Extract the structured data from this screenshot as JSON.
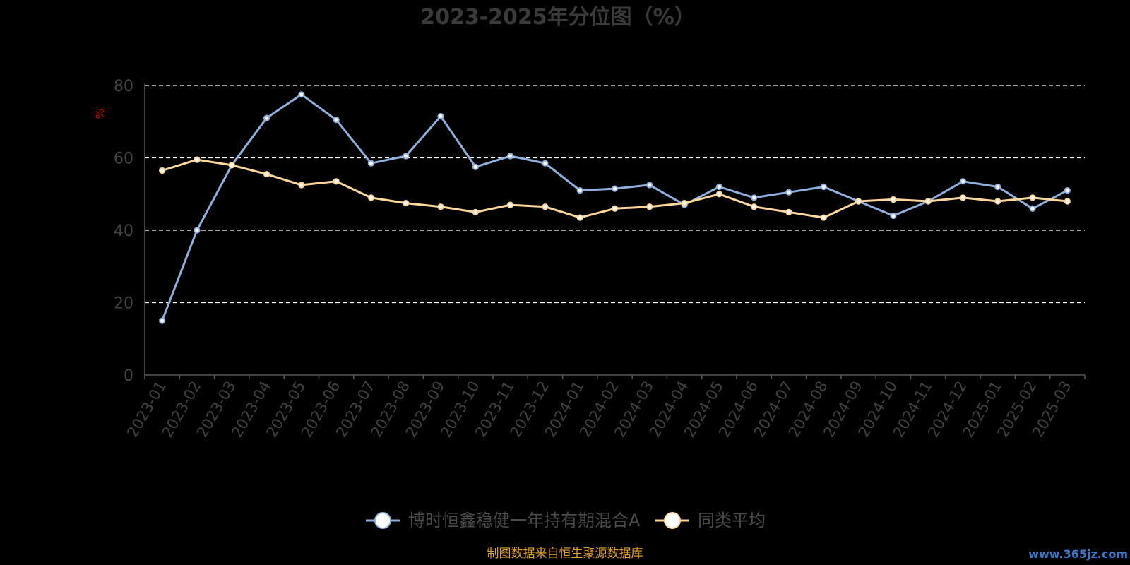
{
  "chart_data": {
    "type": "line",
    "title": "2023-2025年分位图（%）",
    "ylabel": "%",
    "ylim": [
      0,
      80
    ],
    "yticks": [
      "0",
      "20",
      "40",
      "60",
      "80"
    ],
    "grid": true,
    "legend_position": "bottom",
    "categories": [
      "2023-01",
      "2023-02",
      "2023-03",
      "2023-04",
      "2023-05",
      "2023-06",
      "2023-07",
      "2023-08",
      "2023-09",
      "2023-10",
      "2023-11",
      "2023-12",
      "2024-01",
      "2024-02",
      "2024-03",
      "2024-04",
      "2024-05",
      "2024-06",
      "2024-07",
      "2024-08",
      "2024-09",
      "2024-10",
      "2024-11",
      "2024-12",
      "2025-01",
      "2025-02",
      "2025-03"
    ],
    "series": [
      {
        "name": "博时恒鑫稳健一年持有期混合A",
        "color": "#8fb0de",
        "values": [
          15,
          40,
          58,
          71,
          77.5,
          70.5,
          58.5,
          60.5,
          71.5,
          57.5,
          60.5,
          58.5,
          51,
          51.5,
          52.5,
          47,
          52,
          49,
          50.5,
          52,
          48,
          44,
          48,
          53.5,
          52,
          46,
          51
        ]
      },
      {
        "name": "同类平均",
        "color": "#fcd79a",
        "values": [
          56.5,
          59.5,
          58,
          55.5,
          52.5,
          53.5,
          49,
          47.5,
          46.5,
          45,
          47,
          46.5,
          43.5,
          46,
          46.5,
          47.5,
          50,
          46.5,
          45,
          43.5,
          48,
          48.5,
          48,
          49,
          48,
          49,
          48
        ]
      }
    ]
  },
  "source_note": "制图数据来自恒生聚源数据库",
  "watermark": "www.365jz.com"
}
